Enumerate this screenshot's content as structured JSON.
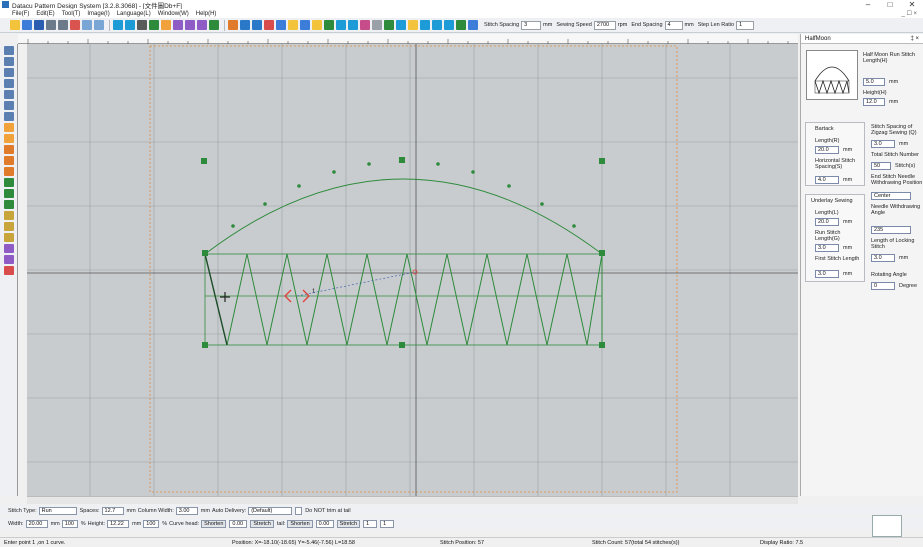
{
  "window": {
    "title": "Datacu Pattern Design System [3.2.8.3068] - [文件圖Db+F]",
    "controls": [
      "–",
      "□",
      "✕"
    ]
  },
  "menu": {
    "items": [
      "File(F)",
      "Edit(E)",
      "Tool(T)",
      "Image(I)",
      "Language(L)",
      "Window(W)",
      "Help(H)"
    ],
    "mdi_controls": "_ ☐ ×"
  },
  "toolbar": {
    "stitch_spacing_label": "Stitch Spacing",
    "stitch_spacing_value": "3",
    "stitch_spacing_unit": "mm",
    "sewing_speed_label": "Sewing Speed",
    "sewing_speed_value": "2700",
    "sewing_speed_unit": "rpm",
    "end_spacing_label": "End Spacing",
    "end_spacing_value": "4",
    "end_spacing_unit": "mm",
    "step_len_ratio_label": "Step Len Ratio",
    "step_len_ratio_value": "1"
  },
  "panel": {
    "title": "HalfMoon",
    "close": "‡ ×",
    "half_moon_label": "Half Moon Run Stitch Length(H)",
    "half_moon_value": "5.0",
    "half_moon_unit": "mm",
    "height_label": "Height(H)",
    "height_value": "12.0",
    "height_unit": "mm",
    "bartack_title": "Bartack",
    "length_label": "Length(R)",
    "length_value": "20.0",
    "length_unit": "mm",
    "horizontal_label": "Horizontal Stitch Spacing(S)",
    "horizontal_value": "4.0",
    "horizontal_unit": "mm",
    "stitch_spacing_label": "Stitch Spacing of Zigzag Sewing (Q)",
    "stitch_spacing_value": "3.0",
    "stitch_spacing_unit": "mm",
    "total_stitch_label": "Total Stitch Number",
    "total_stitch_value": "50",
    "total_stitch_unit": "Stitch(s)",
    "end_stitch_label": "End Stitch Needle Withdrawing Position",
    "end_stitch_value": "Center",
    "underlay_title": "Underlay Sewing",
    "underlay_length_label": "Length(L)",
    "underlay_length_value": "20.0",
    "underlay_length_unit": "mm",
    "run_stitch_label": "Run Stitch Length(G)",
    "run_stitch_value": "3.0",
    "run_stitch_unit": "mm",
    "first_stitch_label": "First Stitch Length",
    "first_stitch_value": "3.0",
    "first_stitch_unit": "mm",
    "needle_angle_label": "Needle Withdrawing Angle",
    "needle_angle_value": "235",
    "locking_label": "Length of Locking Stitch",
    "locking_value": "3.0",
    "locking_unit": "mm",
    "rotating_label": "Rotating Angle",
    "rotating_value": "0",
    "rotating_unit": "Degree"
  },
  "bottom": {
    "stitch_type_label": "Stitch Type:",
    "stitch_type_value": "Run",
    "spaces_label": "Spaces:",
    "spaces_value": "12.7",
    "spaces_unit": "mm",
    "column_width_label": "Column Width:",
    "column_width_value": "3.00",
    "column_width_unit": "mm",
    "auto_delivery_label": "Auto Delivery:",
    "auto_delivery_value": "(Default)",
    "do_not_trim_label": "Do NOT trim at tail",
    "width_label": "Width:",
    "width_value": "20.00",
    "width_unit": "mm",
    "width_pct": "100",
    "pct_unit": "%",
    "height_label": "Height:",
    "height_value": "12.22",
    "height_unit": "mm",
    "height_pct": "100",
    "curve_head_label": "Curve head:",
    "shorten1": "Shorten",
    "shorten1_value": "0.00",
    "stretch1": "Stretch",
    "tail_label": "tail:",
    "shorten2": "Shorten",
    "shorten2_value": "0.00",
    "stretch2": "Stretch",
    "spin1": "1",
    "spin2": "1"
  },
  "status": {
    "hint": "Enter point 1 ,on 1 curve.",
    "position": "Position: X=-18.10(-18.65) Y=-5.46(-7.56) L=18.58",
    "stitch_position": "Stitch Position: 57",
    "stitch_count": "Stitch Count: 57(total 54 stitches(s))",
    "display_ratio": "Display Ratio: 7.5"
  },
  "canvas": {
    "accent": "#2e8b3c",
    "grid": "#8f9499",
    "background": "#c9cccf",
    "start_marker_label": "1"
  },
  "icons": [
    "new-file-icon",
    "open-icon",
    "save-icon",
    "undo-icon",
    "redo-icon",
    "zoom-icon",
    "arrow-icon",
    "grid-icon",
    "curve-icon",
    "stitch-icon"
  ]
}
